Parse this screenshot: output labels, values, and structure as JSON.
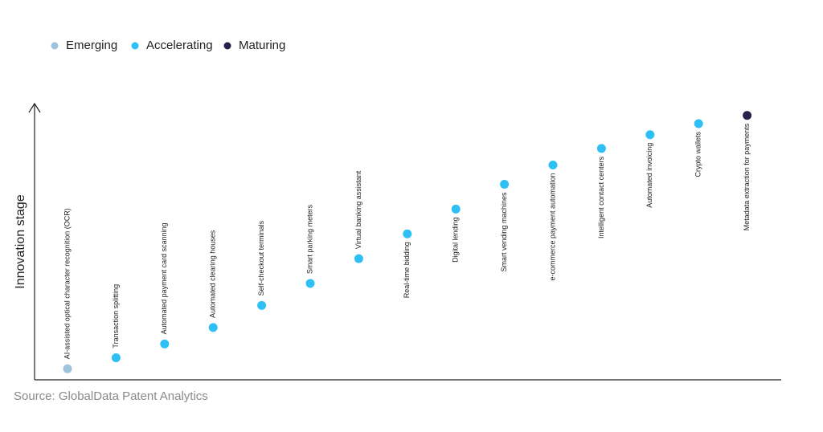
{
  "chart_data": {
    "type": "scatter",
    "y_label": "Innovation stage",
    "source": "Source: GlobalData Patent Analytics",
    "categories": [
      "AI-assisted optical character recognition (OCR)",
      "Transaction splitting",
      "Automated payment card scanning",
      "Automated clearing houses",
      "Self-checkout terminals",
      "Smart parking meters",
      "Virtual banking assistant",
      "Real-time bidding",
      "Digital lending",
      "Smart vending machines",
      "e-commerce payment automation",
      "Intelligent contact centers",
      "Automated invoicing",
      "Crypto wallets",
      "Metadata extraction for payments"
    ],
    "series": [
      {
        "name": "Emerging",
        "color": "#9ec3dc",
        "values": [
          4,
          null,
          null,
          null,
          null,
          null,
          null,
          null,
          null,
          null,
          null,
          null,
          null,
          null,
          null
        ]
      },
      {
        "name": "Accelerating",
        "color": "#2ec0f5",
        "values": [
          null,
          8,
          13,
          19,
          27,
          35,
          44,
          53,
          62,
          71,
          78,
          84,
          89,
          93,
          null
        ]
      },
      {
        "name": "Maturing",
        "color": "#2a1f4a",
        "values": [
          null,
          null,
          null,
          null,
          null,
          null,
          null,
          null,
          null,
          null,
          null,
          null,
          null,
          null,
          96
        ]
      }
    ],
    "ylim": [
      0,
      100
    ]
  }
}
